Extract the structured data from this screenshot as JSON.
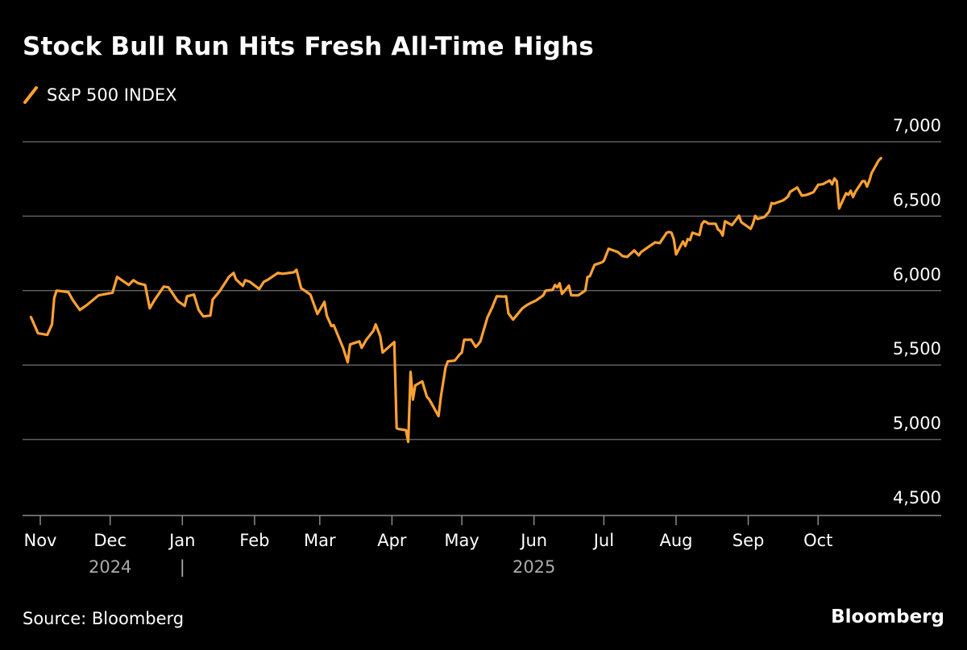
{
  "chart_data": {
    "type": "line",
    "title": "Stock Bull Run Hits Fresh All-Time Highs",
    "xlabel": "",
    "ylabel": "",
    "ylim": [
      4500,
      7000
    ],
    "yticks": [
      7000,
      6500,
      6000,
      5500,
      5000,
      4500
    ],
    "ytick_labels": [
      "7,000",
      "6,500",
      "6,000",
      "5,500",
      "5,000",
      "4,500"
    ],
    "xticks": [
      "2024-11-01",
      "2024-12-01",
      "2025-01-01",
      "2025-02-01",
      "2025-03-01",
      "2025-04-01",
      "2025-05-01",
      "2025-06-01",
      "2025-07-01",
      "2025-08-01",
      "2025-09-01",
      "2025-10-01"
    ],
    "xtick_labels": [
      "Nov",
      "Dec",
      "Jan",
      "Feb",
      "Mar",
      "Apr",
      "May",
      "Jun",
      "Jul",
      "Aug",
      "Sep",
      "Oct"
    ],
    "year_labels": [
      {
        "label": "2024",
        "at": "2024-12-01"
      },
      {
        "label": "|",
        "at": "2025-01-01"
      },
      {
        "label": "2025",
        "at": "2025-06-01"
      }
    ],
    "grid": true,
    "legend_position": "top-left",
    "series": [
      {
        "name": "S&P 500 INDEX",
        "color": "#FFA133",
        "x": [
          "2024-10-28",
          "2024-10-31",
          "2024-11-04",
          "2024-11-06",
          "2024-11-07",
          "2024-11-08",
          "2024-11-13",
          "2024-11-15",
          "2024-11-18",
          "2024-11-21",
          "2024-11-26",
          "2024-12-02",
          "2024-12-04",
          "2024-12-06",
          "2024-12-09",
          "2024-12-11",
          "2024-12-13",
          "2024-12-16",
          "2024-12-18",
          "2024-12-20",
          "2024-12-24",
          "2024-12-26",
          "2024-12-30",
          "2025-01-02",
          "2025-01-03",
          "2025-01-06",
          "2025-01-08",
          "2025-01-10",
          "2025-01-13",
          "2025-01-14",
          "2025-01-17",
          "2025-01-21",
          "2025-01-23",
          "2025-01-24",
          "2025-01-27",
          "2025-01-28",
          "2025-01-30",
          "2025-02-03",
          "2025-02-05",
          "2025-02-07",
          "2025-02-11",
          "2025-02-13",
          "2025-02-18",
          "2025-02-19",
          "2025-02-21",
          "2025-02-25",
          "2025-02-28",
          "2025-03-03",
          "2025-03-04",
          "2025-03-06",
          "2025-03-07",
          "2025-03-11",
          "2025-03-13",
          "2025-03-14",
          "2025-03-18",
          "2025-03-19",
          "2025-03-21",
          "2025-03-24",
          "2025-03-25",
          "2025-03-27",
          "2025-03-28",
          "2025-04-02",
          "2025-04-03",
          "2025-04-04",
          "2025-04-07",
          "2025-04-08",
          "2025-04-09",
          "2025-04-10",
          "2025-04-11",
          "2025-04-14",
          "2025-04-16",
          "2025-04-17",
          "2025-04-21",
          "2025-04-22",
          "2025-04-24",
          "2025-04-25",
          "2025-04-28",
          "2025-04-30",
          "2025-05-01",
          "2025-05-02",
          "2025-05-05",
          "2025-05-07",
          "2025-05-08",
          "2025-05-09",
          "2025-05-12",
          "2025-05-14",
          "2025-05-16",
          "2025-05-19",
          "2025-05-20",
          "2025-05-21",
          "2025-05-23",
          "2025-05-27",
          "2025-05-29",
          "2025-05-30",
          "2025-06-02",
          "2025-06-05",
          "2025-06-06",
          "2025-06-09",
          "2025-06-10",
          "2025-06-11",
          "2025-06-12",
          "2025-06-13",
          "2025-06-16",
          "2025-06-17",
          "2025-06-20",
          "2025-06-23",
          "2025-06-24",
          "2025-06-25",
          "2025-06-27",
          "2025-06-30",
          "2025-07-01",
          "2025-07-03",
          "2025-07-07",
          "2025-07-09",
          "2025-07-11",
          "2025-07-14",
          "2025-07-16",
          "2025-07-17",
          "2025-07-21",
          "2025-07-23",
          "2025-07-25",
          "2025-07-28",
          "2025-07-29",
          "2025-07-30",
          "2025-07-31",
          "2025-08-01",
          "2025-08-04",
          "2025-08-05",
          "2025-08-06",
          "2025-08-07",
          "2025-08-08",
          "2025-08-11",
          "2025-08-12",
          "2025-08-13",
          "2025-08-14",
          "2025-08-15",
          "2025-08-18",
          "2025-08-19",
          "2025-08-20",
          "2025-08-21",
          "2025-08-22",
          "2025-08-25",
          "2025-08-27",
          "2025-08-28",
          "2025-08-29",
          "2025-09-02",
          "2025-09-03",
          "2025-09-04",
          "2025-09-05",
          "2025-09-08",
          "2025-09-10",
          "2025-09-11",
          "2025-09-12",
          "2025-09-16",
          "2025-09-18",
          "2025-09-19",
          "2025-09-22",
          "2025-09-24",
          "2025-09-26",
          "2025-09-29",
          "2025-10-01",
          "2025-10-03",
          "2025-10-06",
          "2025-10-07",
          "2025-10-08",
          "2025-10-09",
          "2025-10-10",
          "2025-10-13",
          "2025-10-14",
          "2025-10-15",
          "2025-10-16",
          "2025-10-17",
          "2025-10-20",
          "2025-10-21",
          "2025-10-22",
          "2025-10-23",
          "2025-10-24",
          "2025-10-27",
          "2025-10-28"
        ],
        "y": [
          5822,
          5714,
          5703,
          5773,
          5951,
          6000,
          5990,
          5935,
          5870,
          5903,
          5968,
          5986,
          6092,
          6070,
          6038,
          6070,
          6049,
          6038,
          5881,
          5935,
          6027,
          6022,
          5930,
          5897,
          5962,
          5973,
          5870,
          5827,
          5832,
          5940,
          5995,
          6092,
          6119,
          6076,
          6032,
          6070,
          6059,
          6011,
          6059,
          6076,
          6119,
          6113,
          6124,
          6140,
          6016,
          5973,
          5843,
          5924,
          5832,
          5762,
          5768,
          5616,
          5519,
          5638,
          5659,
          5616,
          5670,
          5730,
          5773,
          5692,
          5584,
          5654,
          5076,
          5070,
          5062,
          4984,
          5454,
          5268,
          5363,
          5390,
          5287,
          5270,
          5157,
          5287,
          5484,
          5525,
          5530,
          5570,
          5584,
          5670,
          5670,
          5622,
          5638,
          5660,
          5820,
          5886,
          5962,
          5960,
          5962,
          5848,
          5805,
          5881,
          5903,
          5912,
          5935,
          5968,
          6000,
          6005,
          6038,
          6022,
          6049,
          5978,
          6033,
          5968,
          5968,
          6000,
          6092,
          6097,
          6173,
          6189,
          6200,
          6281,
          6259,
          6232,
          6227,
          6270,
          6237,
          6259,
          6303,
          6324,
          6319,
          6389,
          6394,
          6389,
          6346,
          6243,
          6330,
          6300,
          6346,
          6340,
          6389,
          6373,
          6445,
          6466,
          6460,
          6449,
          6449,
          6411,
          6400,
          6370,
          6466,
          6440,
          6481,
          6503,
          6460,
          6415,
          6448,
          6502,
          6481,
          6495,
          6532,
          6588,
          6584,
          6606,
          6631,
          6664,
          6693,
          6638,
          6643,
          6661,
          6711,
          6715,
          6740,
          6714,
          6753,
          6735,
          6552,
          6654,
          6644,
          6671,
          6629,
          6664,
          6735,
          6735,
          6699,
          6738,
          6791,
          6875,
          6890
        ]
      }
    ],
    "source": "Source: Bloomberg",
    "brand": "Bloomberg"
  }
}
